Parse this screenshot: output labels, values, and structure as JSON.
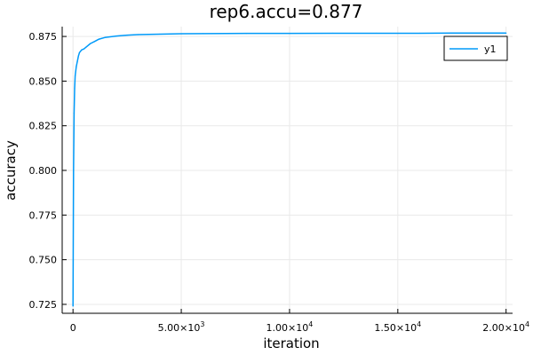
{
  "chart_data": {
    "type": "line",
    "title": "rep6.accu=0.877",
    "xlabel": "iteration",
    "ylabel": "accuracy",
    "xlim": [
      -500,
      20300
    ],
    "ylim": [
      0.72,
      0.8805
    ],
    "grid": true,
    "legend_position": "top-right",
    "x_ticks": [
      {
        "value": 0,
        "label": "0",
        "exp": ""
      },
      {
        "value": 5000,
        "label": "5.00×10",
        "exp": "3"
      },
      {
        "value": 10000,
        "label": "1.00×10",
        "exp": "4"
      },
      {
        "value": 15000,
        "label": "1.50×10",
        "exp": "4"
      },
      {
        "value": 20000,
        "label": "2.00×10",
        "exp": "4"
      }
    ],
    "y_ticks": [
      {
        "value": 0.725,
        "label": "0.725"
      },
      {
        "value": 0.75,
        "label": "0.750"
      },
      {
        "value": 0.775,
        "label": "0.775"
      },
      {
        "value": 0.8,
        "label": "0.800"
      },
      {
        "value": 0.825,
        "label": "0.825"
      },
      {
        "value": 0.85,
        "label": "0.850"
      },
      {
        "value": 0.875,
        "label": "0.875"
      }
    ],
    "series": [
      {
        "name": "y1",
        "color": "#009af9",
        "x": [
          0,
          25,
          50,
          75,
          100,
          150,
          200,
          250,
          300,
          400,
          500,
          600,
          800,
          1000,
          1200,
          1500,
          2000,
          2500,
          3000,
          4000,
          5000,
          6000,
          8000,
          10000,
          12000,
          14000,
          16000,
          18000,
          20000
        ],
        "y": [
          0.724,
          0.8,
          0.832,
          0.846,
          0.853,
          0.858,
          0.861,
          0.864,
          0.866,
          0.8675,
          0.868,
          0.869,
          0.871,
          0.8722,
          0.8735,
          0.8745,
          0.8752,
          0.8757,
          0.876,
          0.8763,
          0.8765,
          0.8766,
          0.8767,
          0.8767,
          0.8768,
          0.8768,
          0.8768,
          0.8769,
          0.8769
        ]
      }
    ]
  }
}
